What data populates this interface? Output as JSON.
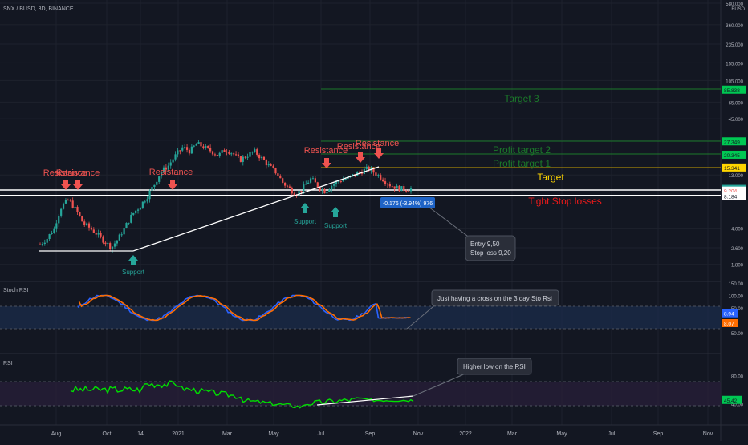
{
  "header": {
    "symbol_title": "SNX / BUSD, 3D, BINANCE"
  },
  "colors": {
    "background": "#131722",
    "up": "#26a69a",
    "down": "#ef5350",
    "grid": "#1e222d",
    "axis_text": "#b2b5be",
    "support_green": "#26a69a",
    "resistance_red": "#ef5350",
    "target_green": "#1b5e20",
    "stoch_k": "#2962ff",
    "stoch_d": "#ff6d00",
    "rsi_line": "#00e000",
    "callout_bg": "#2a2e39"
  },
  "price_axis": {
    "currency": "BUSD",
    "ticks": [
      "580.000",
      "360.000",
      "235.000",
      "155.000",
      "105.000",
      "65.000",
      "45.000",
      "28.000",
      "13.000",
      "4.000",
      "2.600",
      "1.800"
    ],
    "price_badges": [
      {
        "text": "85.838",
        "color": "#00c853",
        "text_color": "#131722"
      },
      {
        "text": "27.349",
        "color": "#00c853",
        "text_color": "#131722"
      },
      {
        "text": "20.345",
        "color": "#00c853",
        "text_color": "#131722"
      },
      {
        "text": "15.341",
        "color": "#ffd600",
        "text_color": "#131722"
      },
      {
        "text": "9.558",
        "color": "#26a69a",
        "text_color": "#ffffff"
      },
      {
        "text": "1d 12h",
        "color": "#26a69a",
        "text_color": "#ffffff"
      },
      {
        "text": "9.204",
        "color": "#ffffff",
        "text_color": "#ef5350"
      },
      {
        "text": "8.184",
        "color": "#ffffff",
        "text_color": "#131722"
      }
    ]
  },
  "time_axis": {
    "labels": [
      "Aug",
      "Oct",
      "14",
      "2021",
      "Mar",
      "May",
      "Jul",
      "Sep",
      "Nov",
      "2022",
      "Mar",
      "May",
      "Jul",
      "Sep",
      "Nov"
    ]
  },
  "annotations": {
    "resistance_labels": [
      "Resistance",
      "Resistance",
      "Resistance",
      "Resistance",
      "Resistance",
      "Resistance"
    ],
    "support_labels": [
      "Support",
      "Support",
      "Support"
    ],
    "target_labels": {
      "target3": "Target 3",
      "profit2": "Profit target 2",
      "profit1": "Profit target 1",
      "target": "Target",
      "stop": "Tight Stop losses"
    },
    "measure_label": "-0.176 (-3.94%) 976",
    "entry_box": {
      "line1": "Entry 9,50",
      "line2": "Stop loss 9,20"
    },
    "stoch_note": "Just having a cross on the 3 day Sto Rsi",
    "rsi_note": "Higher low on the RSI"
  },
  "stoch_pane": {
    "title": "Stoch RSI",
    "ticks": [
      "150.00",
      "100.00",
      "50.00",
      "-50.00"
    ],
    "badges": [
      {
        "text": "8.94",
        "color": "#2962ff"
      },
      {
        "text": "8.07",
        "color": "#ff6d00"
      }
    ]
  },
  "rsi_pane": {
    "title": "RSI",
    "ticks": [
      "80.00",
      "40.00"
    ],
    "badges": [
      {
        "text": "45.42",
        "color": "#00c853"
      }
    ]
  },
  "chart_data": {
    "type": "candlestick",
    "title": "SNX / BUSD, 3D, BINANCE",
    "price_scale": "log",
    "ylim": [
      1.5,
      580
    ],
    "x_labels": [
      "Aug",
      "Oct",
      "14",
      "2021",
      "Mar",
      "May",
      "Jul",
      "Sep",
      "Nov",
      "2022",
      "Mar",
      "May",
      "Jul",
      "Sep",
      "Nov"
    ],
    "close_path_approx": [
      2.8,
      3.2,
      4.0,
      6.5,
      7.5,
      6.0,
      4.5,
      4.0,
      3.5,
      3.0,
      2.6,
      3.2,
      4.2,
      5.5,
      6.5,
      8.0,
      10.5,
      14.0,
      16.0,
      20.0,
      24.0,
      22.0,
      26.0,
      24.0,
      22.0,
      20.0,
      23.0,
      21.0,
      18.0,
      20.0,
      22.0,
      19.0,
      16.0,
      14.0,
      11.0,
      9.5,
      8.5,
      10.0,
      12.0,
      10.0,
      9.0,
      10.5,
      11.5,
      12.0,
      13.0,
      14.0,
      15.0,
      13.5,
      12.0,
      10.5,
      9.8,
      9.5,
      9.56
    ],
    "horizontal_levels": [
      {
        "label": "Target 3",
        "price": 85.838
      },
      {
        "label": "Profit target 2",
        "price": 27.349
      },
      {
        "label": "Profit target 1",
        "price": 20.345
      },
      {
        "label": "Target",
        "price": 15.341
      },
      {
        "label": "Tight Stop losses",
        "price": 9.204
      },
      {
        "label": "",
        "price": 8.184
      }
    ],
    "last_price": 9.558,
    "stoch_rsi": {
      "ylim": [
        -50,
        150
      ],
      "k_last": 8.94,
      "d_last": 8.07
    },
    "rsi": {
      "ylim": [
        20,
        100
      ],
      "last": 45.42,
      "bands": [
        70,
        30
      ]
    }
  }
}
